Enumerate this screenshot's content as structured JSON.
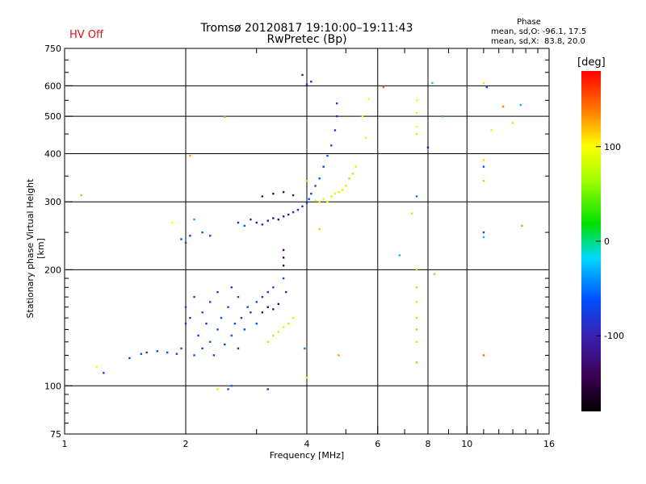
{
  "header": {
    "hv_status": "HV Off",
    "title_line1": "Tromsø 20120817 19:10:00–19:11:43",
    "title_line2": "RwPretec (Bp)",
    "phase_title": "Phase",
    "phase_stats_0": "mean, sd,O: -96.1, 17.5",
    "phase_stats_x": "mean, sd,X:  83.8, 20.0"
  },
  "colorbar": {
    "label": "[deg]",
    "ticks": [
      "100",
      "0",
      "-100"
    ]
  },
  "chart_data": {
    "type": "scatter",
    "xlabel": "Frequency [MHz]",
    "ylabel": "Stationary phase Virtual Height [km]",
    "xscale": "log",
    "yscale": "log",
    "xlim": [
      1,
      16
    ],
    "ylim": [
      75,
      750
    ],
    "xticks": [
      1,
      2,
      4,
      6,
      8,
      10,
      16
    ],
    "xtick_labels": [
      "1",
      "2",
      "4",
      "6",
      "8",
      "10",
      "16"
    ],
    "yticks": [
      75,
      100,
      200,
      300,
      400,
      500,
      600,
      750
    ],
    "ytick_labels": [
      "75",
      "100",
      "200",
      "300",
      "400",
      "500",
      "600",
      "750"
    ],
    "x_gridlines": [
      2,
      4,
      6,
      8,
      10
    ],
    "y_gridlines": [
      100,
      200,
      300,
      400,
      500,
      600
    ],
    "color_scale": {
      "min": -180,
      "max": 180,
      "unit": "deg"
    },
    "series": [
      {
        "points": [
          [
            1.6,
            122,
            -110
          ],
          [
            1.7,
            123,
            -105
          ],
          [
            1.8,
            122,
            -100
          ],
          [
            1.9,
            121,
            -110
          ],
          [
            1.95,
            125,
            -100
          ],
          [
            2.0,
            145,
            -110
          ],
          [
            2.0,
            160,
            -105
          ],
          [
            2.05,
            150,
            -115
          ],
          [
            2.1,
            120,
            -100
          ],
          [
            2.1,
            170,
            -110
          ],
          [
            2.15,
            135,
            -105
          ],
          [
            2.2,
            155,
            -100
          ],
          [
            2.2,
            125,
            -110
          ],
          [
            2.25,
            145,
            -115
          ],
          [
            2.3,
            165,
            -105
          ],
          [
            2.3,
            130,
            -100
          ],
          [
            2.35,
            120,
            -110
          ],
          [
            2.4,
            140,
            -105
          ],
          [
            2.4,
            175,
            -115
          ],
          [
            2.45,
            150,
            -100
          ],
          [
            2.5,
            128,
            -110
          ],
          [
            2.55,
            160,
            -105
          ],
          [
            2.6,
            135,
            -100
          ],
          [
            2.6,
            180,
            -110
          ],
          [
            2.65,
            145,
            -105
          ],
          [
            2.7,
            125,
            -115
          ],
          [
            2.7,
            170,
            -100
          ],
          [
            2.75,
            150,
            -110
          ],
          [
            2.8,
            140,
            -105
          ],
          [
            2.85,
            160,
            -100
          ],
          [
            2.9,
            155,
            -110
          ],
          [
            3.0,
            165,
            -105
          ],
          [
            3.0,
            145,
            -100
          ],
          [
            3.1,
            170,
            -110
          ],
          [
            3.2,
            175,
            -115
          ],
          [
            3.3,
            180,
            -105
          ],
          [
            3.5,
            190,
            -100
          ],
          [
            3.55,
            175,
            -120
          ],
          [
            1.25,
            108,
            -105
          ],
          [
            1.45,
            118,
            -110
          ],
          [
            1.55,
            121,
            -100
          ]
        ]
      },
      {
        "points": [
          [
            1.95,
            240,
            -100
          ],
          [
            2.0,
            235,
            -105
          ],
          [
            2.05,
            245,
            -110
          ],
          [
            2.2,
            250,
            -100
          ],
          [
            2.3,
            245,
            -105
          ],
          [
            2.7,
            265,
            -110
          ],
          [
            2.8,
            260,
            -100
          ],
          [
            2.9,
            270,
            -120
          ],
          [
            3.0,
            265,
            -125
          ],
          [
            3.1,
            262,
            -115
          ],
          [
            3.2,
            268,
            -130
          ],
          [
            3.3,
            272,
            -135
          ],
          [
            3.4,
            270,
            -140
          ],
          [
            3.5,
            275,
            -130
          ],
          [
            3.6,
            278,
            -125
          ],
          [
            3.7,
            282,
            -120
          ],
          [
            3.8,
            286,
            -115
          ],
          [
            3.9,
            292,
            -110
          ],
          [
            4.0,
            298,
            -105
          ],
          [
            4.05,
            305,
            -100
          ],
          [
            4.1,
            315,
            -110
          ],
          [
            4.2,
            330,
            -105
          ],
          [
            4.3,
            345,
            -100
          ],
          [
            4.4,
            370,
            -110
          ],
          [
            4.5,
            395,
            -105
          ],
          [
            4.6,
            420,
            -100
          ],
          [
            4.7,
            460,
            -110
          ],
          [
            4.75,
            500,
            -115
          ],
          [
            4.75,
            540,
            -105
          ],
          [
            3.1,
            310,
            -140
          ],
          [
            3.3,
            315,
            -145
          ],
          [
            3.5,
            318,
            -140
          ],
          [
            3.7,
            312,
            -135
          ],
          [
            3.9,
            640,
            -130
          ],
          [
            4.0,
            605,
            -115
          ],
          [
            4.1,
            615,
            -120
          ]
        ]
      },
      {
        "points": [
          [
            3.1,
            155,
            -145
          ],
          [
            3.2,
            160,
            -150
          ],
          [
            3.3,
            158,
            -140
          ],
          [
            3.4,
            163,
            -145
          ],
          [
            3.5,
            205,
            -155
          ],
          [
            3.5,
            215,
            -150
          ],
          [
            3.5,
            225,
            -145
          ]
        ]
      },
      {
        "points": [
          [
            3.2,
            130,
            60
          ],
          [
            3.3,
            135,
            70
          ],
          [
            3.4,
            138,
            75
          ],
          [
            3.5,
            142,
            80
          ],
          [
            3.6,
            145,
            70
          ],
          [
            3.7,
            150,
            75
          ],
          [
            4.0,
            340,
            55
          ],
          [
            4.2,
            302,
            75
          ],
          [
            4.3,
            300,
            80
          ],
          [
            4.4,
            305,
            85
          ],
          [
            4.5,
            300,
            90
          ],
          [
            4.6,
            310,
            80
          ],
          [
            4.7,
            315,
            90
          ],
          [
            4.8,
            318,
            85
          ],
          [
            4.9,
            322,
            75
          ],
          [
            5.0,
            330,
            70
          ],
          [
            5.1,
            345,
            60
          ],
          [
            5.2,
            355,
            65
          ],
          [
            5.3,
            370,
            80
          ],
          [
            5.6,
            440,
            90
          ],
          [
            5.7,
            555,
            100
          ],
          [
            1.2,
            112,
            95
          ],
          [
            4.3,
            255,
            120
          ],
          [
            4.8,
            120,
            130
          ]
        ]
      },
      {
        "points": [
          [
            7.5,
            550,
            100
          ],
          [
            7.5,
            510,
            105
          ],
          [
            7.5,
            450,
            110
          ],
          [
            7.5,
            470,
            95
          ],
          [
            7.5,
            200,
            115
          ],
          [
            7.5,
            180,
            120
          ],
          [
            7.5,
            165,
            110
          ],
          [
            7.5,
            150,
            115
          ],
          [
            7.5,
            140,
            120
          ],
          [
            7.5,
            130,
            110
          ],
          [
            7.5,
            115,
            125
          ],
          [
            7.5,
            310,
            -80
          ],
          [
            8.3,
            195,
            50
          ],
          [
            8.7,
            500,
            20
          ],
          [
            8.2,
            610,
            -5
          ],
          [
            8.0,
            415,
            -130
          ],
          [
            6.2,
            595,
            150
          ],
          [
            7.3,
            280,
            115
          ],
          [
            6.8,
            218,
            -40
          ],
          [
            5.5,
            500,
            80
          ],
          [
            11.0,
            610,
            110
          ],
          [
            11.2,
            595,
            -100
          ],
          [
            11.5,
            460,
            90
          ],
          [
            11.0,
            385,
            110
          ],
          [
            11.0,
            340,
            120
          ],
          [
            11.0,
            370,
            -100
          ],
          [
            11.0,
            250,
            -110
          ],
          [
            11.0,
            243,
            -30
          ],
          [
            11.0,
            120,
            150
          ],
          [
            12.3,
            530,
            140
          ],
          [
            13.0,
            480,
            70
          ],
          [
            13.6,
            535,
            -40
          ],
          [
            13.7,
            260,
            130
          ],
          [
            1.1,
            312,
            130
          ],
          [
            1.85,
            265,
            100
          ],
          [
            2.05,
            395,
            130
          ],
          [
            2.5,
            498,
            130
          ],
          [
            2.1,
            270,
            -50
          ],
          [
            4.0,
            105,
            110
          ],
          [
            3.95,
            125,
            -70
          ],
          [
            2.6,
            100,
            -90
          ],
          [
            3.2,
            98,
            -120
          ],
          [
            2.4,
            98,
            110
          ],
          [
            2.55,
            98,
            -100
          ]
        ]
      }
    ]
  }
}
